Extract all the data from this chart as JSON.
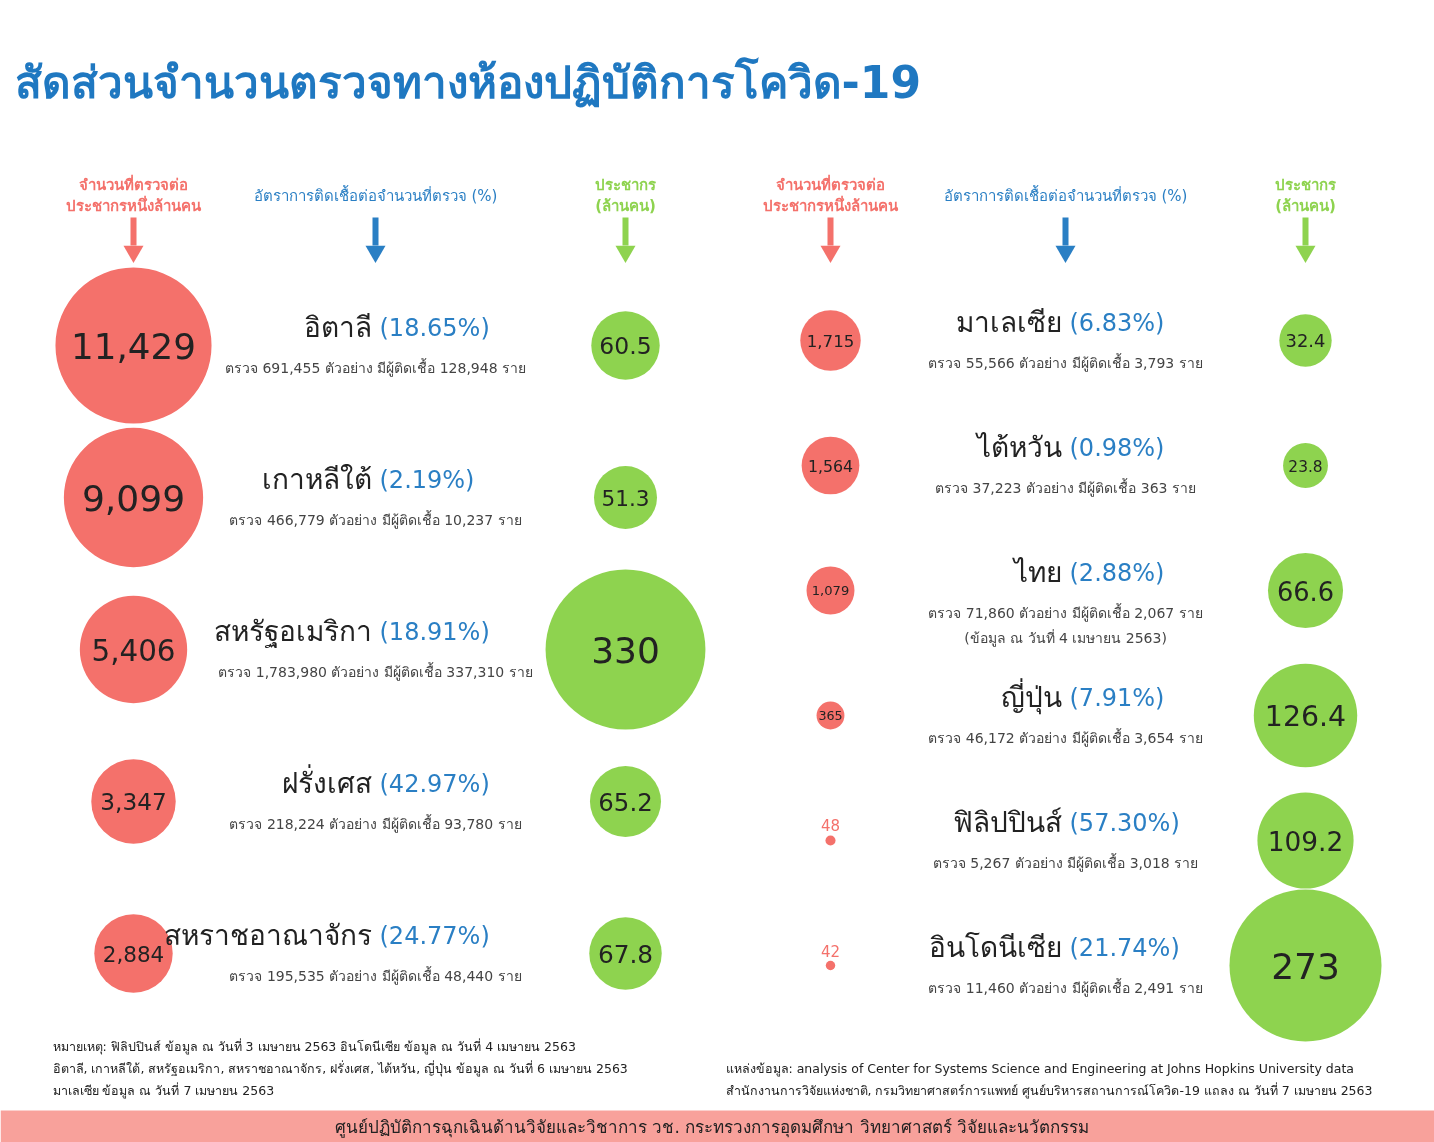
{
  "chart_data": [
    {
      "type": "other",
      "title": "สัดส่วนจำนวนตรวจทางห้องปฏิบัติการโควิด-19",
      "categories": [
        "อิตาลี",
        "เกาหลีใต้",
        "สหรัฐอเมริกา",
        "ฝรั่งเศส",
        "สหราชอาณาจักร"
      ],
      "series": [
        {
          "name": "จำนวนที่ตรวจต่อ\nประชากรหนึ่งล้านคน",
          "color": "#f4716b",
          "values": [
            11429,
            9099,
            5406,
            3347,
            2884
          ],
          "value_labels": [
            "11,429",
            "9,099",
            "5,406",
            "3,347",
            "2,884"
          ]
        },
        {
          "name": "อัตราการติดเชื้อต่อจำนวนที่ตรวจ (%)",
          "color": "#2a7fc4",
          "values": [
            18.65,
            2.19,
            18.91,
            42.97,
            24.77
          ],
          "value_labels": [
            "(18.65%)",
            "(2.19%)",
            "(18.91%)",
            "(42.97%)",
            "(24.77%)"
          ]
        },
        {
          "name": "ประชากร\n(ล้านคน)",
          "color": "#8ed34f",
          "values": [
            60.5,
            51.3,
            330,
            65.2,
            67.8
          ],
          "value_labels": [
            "60.5",
            "51.3",
            "330",
            "65.2",
            "67.8"
          ]
        }
      ],
      "annotations": [
        "ตรวจ 691,455 ตัวอย่าง มีผู้ติดเชื้อ 128,948 ราย",
        "ตรวจ 466,779 ตัวอย่าง มีผู้ติดเชื้อ 10,237 ราย",
        "ตรวจ 1,783,980 ตัวอย่าง มีผู้ติดเชื้อ 337,310 ราย",
        "ตรวจ 218,224 ตัวอย่าง มีผู้ติดเชื้อ 93,780 ราย",
        "ตรวจ 195,535 ตัวอย่าง มีผู้ติดเชื้อ 48,440 ราย",
        "หมายเหตุ: ฟิลิปปินส์ ข้อมูล ณ วันที่ 3 เมษายน 2563     อินโดนีเซีย ข้อมูล ณ วันที่ 4 เมษายน 2563",
        "อิตาลี, เกาหลีใต้, สหรัฐอเมริกา, สหราชอาณาจักร, ฝรั่งเศส, ไต้หวัน, ญี่ปุ่น ข้อมูล ณ วันที่ 6 เมษายน 2563",
        "มาเลเซีย ข้อมูล ณ วันที่ 7 เมษายน 2563"
      ]
    },
    {
      "type": "other",
      "categories": [
        "มาเลเซีย",
        "ไต้หวัน",
        "ไทย",
        "ญี่ปุ่น",
        "ฟิลิปปินส์",
        "อินโดนีเซีย"
      ],
      "series": [
        {
          "name": "จำนวนที่ตรวจต่อ\nประชากรหนึ่งล้านคน",
          "color": "#f4716b",
          "values": [
            1715,
            1564,
            1079,
            365,
            48,
            42
          ],
          "value_labels": [
            "1,715",
            "1,564",
            "1,079",
            "365",
            "48",
            "42"
          ]
        },
        {
          "name": "อัตราการติดเชื้อต่อจำนวนที่ตรวจ (%)",
          "color": "#2a7fc4",
          "values": [
            6.83,
            0.98,
            2.88,
            7.91,
            57.3,
            21.74
          ],
          "value_labels": [
            "(6.83%)",
            "(0.98%)",
            "(2.88%)",
            "(7.91%)",
            "(57.30%)",
            "(21.74%)"
          ]
        },
        {
          "name": "ประชากร\n(ล้านคน)",
          "color": "#8ed34f",
          "values": [
            32.4,
            23.8,
            66.6,
            126.4,
            109.2,
            273
          ],
          "value_labels": [
            "32.4",
            "23.8",
            "66.6",
            "126.4",
            "109.2",
            "273"
          ]
        }
      ],
      "annotations": [
        "ตรวจ 55,566 ตัวอย่าง มีผู้ติดเชื้อ 3,793 ราย",
        "ตรวจ 37,223 ตัวอย่าง มีผู้ติดเชื้อ 363 ราย",
        "ตรวจ 71,860 ตัวอย่าง มีผู้ติดเชื้อ 2,067 ราย\n(ข้อมูล ณ วันที่ 4 เมษายน 2563)",
        "ตรวจ 46,172 ตัวอย่าง มีผู้ติดเชื้อ 3,654 ราย",
        "ตรวจ 5,267 ตัวอย่าง มีผู้ติดเชื้อ 3,018 ราย",
        "ตรวจ 11,460 ตัวอย่าง มีผู้ติดเชื้อ 2,491 ราย",
        "แหล่งข้อมูล: analysis of Center for Systems Science and Engineering at Johns Hopkins University data",
        "สำนักงานการวิจัยแห่งชาติ, กรมวิทยาศาสตร์การแพทย์ ศูนย์บริหารสถานการณ์โควิด-19 แถลง ณ วันที่ 7 เมษายน 2563"
      ]
    },
    {
      "type": "other",
      "annotations": [
        "ศูนย์ปฏิบัติการฉุกเฉินด้านวิจัยและวิชาการ  วช.  กระทรวงการอุดมศึกษา วิทยาศาสตร์ วิจัยและนวัตกรรม"
      ]
    }
  ]
}
